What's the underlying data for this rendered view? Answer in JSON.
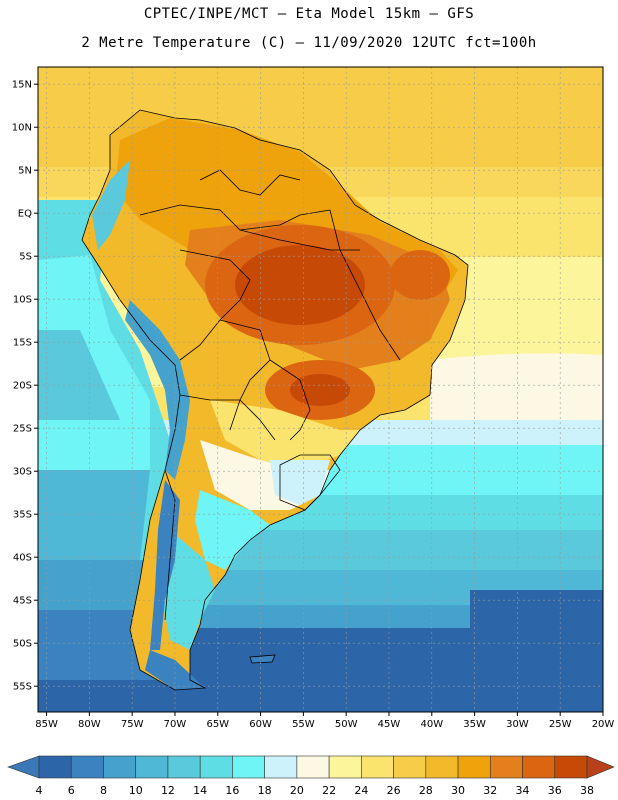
{
  "title": {
    "line1": "CPTEC/INPE/MCT –  Eta Model 15km – GFS",
    "line2": "2 Metre Temperature (C) – 11/09/2020 12UTC fct=100h"
  },
  "map": {
    "lon_range": [
      -86,
      -20
    ],
    "lat_range": [
      -58,
      17
    ],
    "lat_ticks": [
      {
        "value": 15,
        "label": "15N"
      },
      {
        "value": 10,
        "label": "10N"
      },
      {
        "value": 5,
        "label": "5N"
      },
      {
        "value": 0,
        "label": "EQ"
      },
      {
        "value": -5,
        "label": "5S"
      },
      {
        "value": -10,
        "label": "10S"
      },
      {
        "value": -15,
        "label": "15S"
      },
      {
        "value": -20,
        "label": "20S"
      },
      {
        "value": -25,
        "label": "25S"
      },
      {
        "value": -30,
        "label": "30S"
      },
      {
        "value": -35,
        "label": "35S"
      },
      {
        "value": -40,
        "label": "40S"
      },
      {
        "value": -45,
        "label": "45S"
      },
      {
        "value": -50,
        "label": "50S"
      },
      {
        "value": -55,
        "label": "55S"
      }
    ],
    "lon_ticks": [
      {
        "value": -85,
        "label": "85W"
      },
      {
        "value": -80,
        "label": "80W"
      },
      {
        "value": -75,
        "label": "75W"
      },
      {
        "value": -70,
        "label": "70W"
      },
      {
        "value": -65,
        "label": "65W"
      },
      {
        "value": -60,
        "label": "60W"
      },
      {
        "value": -55,
        "label": "55W"
      },
      {
        "value": -50,
        "label": "50W"
      },
      {
        "value": -45,
        "label": "45W"
      },
      {
        "value": -40,
        "label": "40W"
      },
      {
        "value": -35,
        "label": "35W"
      },
      {
        "value": -30,
        "label": "30W"
      },
      {
        "value": -25,
        "label": "25W"
      },
      {
        "value": -20,
        "label": "20W"
      }
    ]
  },
  "colorbar": {
    "labels": [
      "4",
      "6",
      "8",
      "10",
      "12",
      "14",
      "16",
      "18",
      "20",
      "22",
      "24",
      "26",
      "28",
      "30",
      "32",
      "34",
      "36",
      "38"
    ],
    "low_color": "#3a78b8",
    "high_color": "#b8401a",
    "colors": [
      "#2c65a8",
      "#3a82c0",
      "#45a2cc",
      "#4fb8d6",
      "#5ac9dc",
      "#5fdde4",
      "#6ff5f5",
      "#cdf2fb",
      "#fdf8e4",
      "#fdf59c",
      "#fbe46e",
      "#f7cc48",
      "#f2b92b",
      "#eea30c",
      "#e4801c",
      "#db6511",
      "#c74906"
    ]
  }
}
